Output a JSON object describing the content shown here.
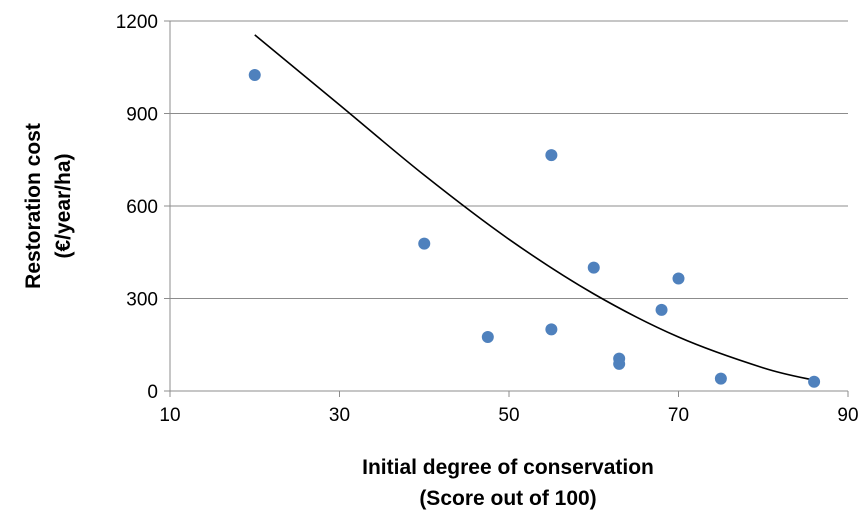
{
  "chart_data": {
    "type": "scatter",
    "xlabel": [
      "Initial degree of conservation",
      "(Score out of 100)"
    ],
    "ylabel": [
      "Restoration cost",
      "(€/year/ha)"
    ],
    "xlim": [
      10,
      90
    ],
    "ylim": [
      0,
      1200
    ],
    "x_ticks": [
      10,
      30,
      50,
      70,
      90
    ],
    "y_ticks": [
      0,
      300,
      600,
      900,
      1200
    ],
    "grid": "horizontal",
    "legend": "none",
    "point_color": "#4f81bd",
    "points": [
      {
        "x": 20,
        "y": 1025
      },
      {
        "x": 40,
        "y": 478
      },
      {
        "x": 47.5,
        "y": 175
      },
      {
        "x": 55,
        "y": 765
      },
      {
        "x": 55,
        "y": 200
      },
      {
        "x": 60,
        "y": 400
      },
      {
        "x": 63,
        "y": 105
      },
      {
        "x": 63,
        "y": 88
      },
      {
        "x": 68,
        "y": 263
      },
      {
        "x": 70,
        "y": 365
      },
      {
        "x": 75,
        "y": 40
      },
      {
        "x": 86,
        "y": 30
      }
    ],
    "trendline": {
      "type": "polynomial",
      "points": [
        {
          "x": 20,
          "y": 1155
        },
        {
          "x": 30,
          "y": 928
        },
        {
          "x": 40,
          "y": 700
        },
        {
          "x": 50,
          "y": 492
        },
        {
          "x": 60,
          "y": 315
        },
        {
          "x": 70,
          "y": 175
        },
        {
          "x": 80,
          "y": 75
        },
        {
          "x": 86,
          "y": 35
        }
      ]
    }
  }
}
